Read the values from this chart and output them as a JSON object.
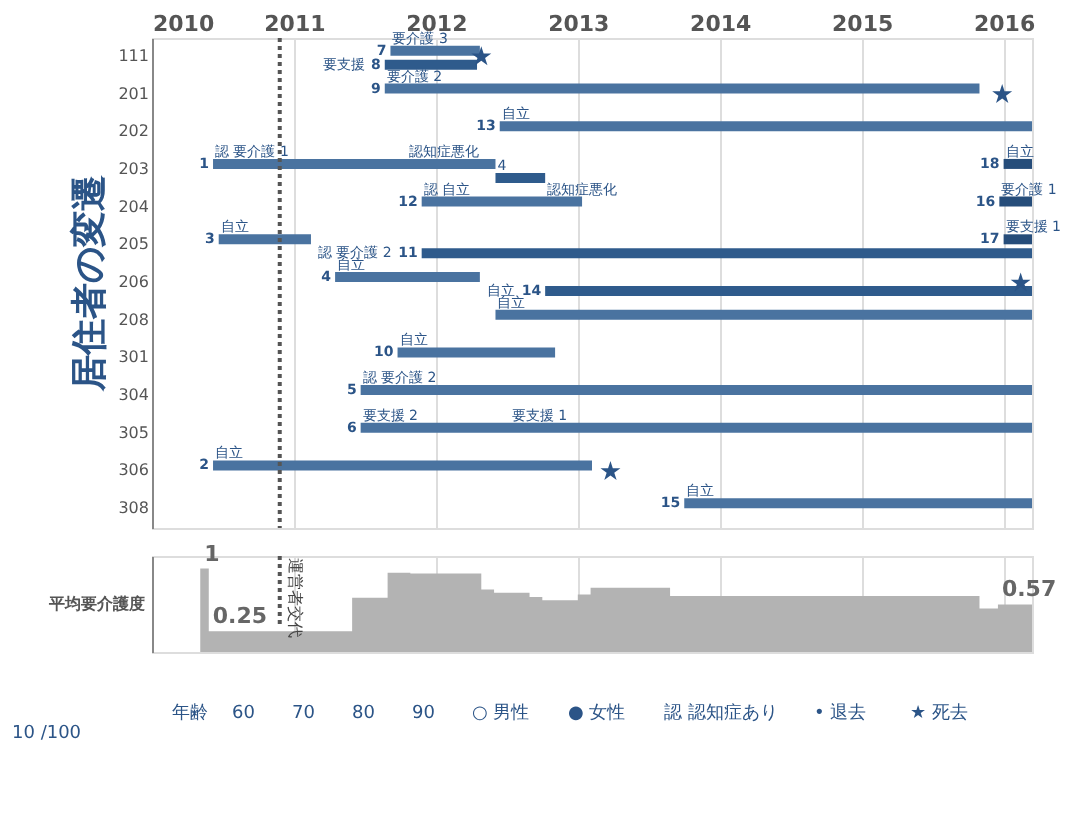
{
  "chart_data": [
    {
      "type": "bar",
      "orientation": "horizontal",
      "title": "居住者の変遷",
      "categories": [
        "111",
        "201",
        "202",
        "203",
        "204",
        "205",
        "206",
        "208",
        "301",
        "304",
        "305",
        "306",
        "308"
      ],
      "xlim": [
        2010,
        2016.2
      ],
      "xticks": [
        2010,
        2011,
        2012,
        2013,
        2014,
        2015,
        2016
      ],
      "grid": "x",
      "ref_lines": [
        {
          "axis": "x",
          "value": 2010.9,
          "label": "運営者交代",
          "line_style": "dotted",
          "color": "#555555"
        }
      ],
      "series": [
        {
          "color": "#4a73a0",
          "base": [
            2011.68,
            2011.64,
            2012.45,
            2010.43,
            2011.9,
            2010.47,
            2011.29,
            2012.42,
            2011.73,
            2011.47,
            2011.47,
            2010.43,
            2013.75
          ],
          "values": [
            0.63,
            4.19,
            3.75,
            1.99,
            1.13,
            0.65,
            1.02,
            3.78,
            1.11,
            4.73,
            4.73,
            2.67,
            2.45
          ]
        },
        {
          "color": "#2f5b8c",
          "base": [
            2011.64,
            null,
            null,
            2012.42,
            null,
            2011.9,
            2012.77,
            null,
            null,
            null,
            null,
            null,
            null
          ],
          "values": [
            0.65,
            null,
            null,
            0.35,
            null,
            4.3,
            3.43,
            null,
            null,
            null,
            null,
            null,
            null
          ]
        },
        {
          "color": "#264d7a",
          "base": [
            null,
            null,
            null,
            2016.0,
            2015.97,
            2016.0,
            null,
            null,
            null,
            null,
            null,
            null,
            null
          ],
          "values": [
            null,
            null,
            null,
            0.2,
            0.23,
            0.2,
            null,
            null,
            null,
            null,
            null,
            null,
            null
          ]
        },
        {
          "type": "scatter",
          "marker": "star",
          "color": "#2b5487",
          "values": [
            2012.32,
            2015.99,
            null,
            null,
            null,
            null,
            2016.12,
            null,
            null,
            null,
            null,
            2013.23,
            null
          ]
        }
      ],
      "annotations": [
        {
          "text": "要介護 3",
          "x": 2011.68,
          "y": "111"
        },
        {
          "text": "要支援",
          "x": 2011.64,
          "y": "111"
        },
        {
          "text": "要介護 2",
          "x": 2011.64,
          "y": "201"
        },
        {
          "text": "自立",
          "x": 2012.45,
          "y": "202"
        },
        {
          "text": "認 要介護 1",
          "x": 2010.43,
          "y": "203"
        },
        {
          "text": "認知症悪化",
          "x": 2011.8,
          "y": "203"
        },
        {
          "text": "自立",
          "x": 2016.0,
          "y": "203"
        },
        {
          "text": "認 自立",
          "x": 2011.9,
          "y": "204"
        },
        {
          "text": "認知症悪化",
          "x": 2012.77,
          "y": "204"
        },
        {
          "text": "要介護 1",
          "x": 2015.97,
          "y": "204"
        },
        {
          "text": "要支援 1",
          "x": 2016.0,
          "y": "205"
        },
        {
          "text": "自立",
          "x": 2010.47,
          "y": "205"
        },
        {
          "text": "認 要介護 2",
          "x": 2011.9,
          "y": "205"
        },
        {
          "text": "自立",
          "x": 2011.29,
          "y": "206"
        },
        {
          "text": "自立",
          "x": 2012.77,
          "y": "206"
        },
        {
          "text": "自立",
          "x": 2012.42,
          "y": "208"
        },
        {
          "text": "自立",
          "x": 2011.73,
          "y": "301"
        },
        {
          "text": "認 要介護 2",
          "x": 2011.47,
          "y": "304"
        },
        {
          "text": "要支援 2",
          "x": 2011.47,
          "y": "305"
        },
        {
          "text": "要支援 1",
          "x": 2012.52,
          "y": "305"
        },
        {
          "text": "自立",
          "x": 2010.43,
          "y": "306"
        },
        {
          "text": "自立",
          "x": 2013.75,
          "y": "308"
        },
        {
          "text": "1",
          "x": 2010.43,
          "y": "203"
        },
        {
          "text": "2",
          "x": 2010.43,
          "y": "306"
        },
        {
          "text": "3",
          "x": 2010.47,
          "y": "205"
        },
        {
          "text": "4",
          "x": 2011.29,
          "y": "206"
        },
        {
          "text": "4",
          "x": 2012.42,
          "y": "203"
        },
        {
          "text": "5",
          "x": 2011.47,
          "y": "304"
        },
        {
          "text": "6",
          "x": 2011.47,
          "y": "305"
        },
        {
          "text": "7",
          "x": 2011.68,
          "y": "111"
        },
        {
          "text": "8",
          "x": 2011.64,
          "y": "111"
        },
        {
          "text": "9",
          "x": 2011.64,
          "y": "201"
        },
        {
          "text": "10",
          "x": 2011.73,
          "y": "301"
        },
        {
          "text": "11",
          "x": 2011.9,
          "y": "205"
        },
        {
          "text": "12",
          "x": 2011.9,
          "y": "204"
        },
        {
          "text": "13",
          "x": 2012.45,
          "y": "202"
        },
        {
          "text": "14",
          "x": 2012.77,
          "y": "206"
        },
        {
          "text": "15",
          "x": 2013.75,
          "y": "308"
        },
        {
          "text": "16",
          "x": 2015.97,
          "y": "204"
        },
        {
          "text": "17",
          "x": 2016.0,
          "y": "205"
        },
        {
          "text": "18",
          "x": 2016.0,
          "y": "203"
        }
      ]
    },
    {
      "type": "area",
      "ylabel": "平均要介護度",
      "color": "#b3b3b3",
      "xlim": [
        2010,
        2016.2
      ],
      "ylim": [
        0,
        1.15
      ],
      "tick_labels": false,
      "grid": "x",
      "x": [
        2010.34,
        2010.4,
        2011.41,
        2011.66,
        2011.82,
        2012.32,
        2012.41,
        2012.66,
        2012.75,
        2013.0,
        2013.09,
        2013.65,
        2015.83,
        2015.96,
        2016.2
      ],
      "values": [
        1,
        0.25,
        0.65,
        0.95,
        0.94,
        0.75,
        0.71,
        0.66,
        0.62,
        0.69,
        0.77,
        0.67,
        0.52,
        0.57,
        0.57
      ],
      "value_labels": [
        "1",
        "0.25",
        null,
        null,
        null,
        null,
        null,
        null,
        null,
        null,
        null,
        null,
        null,
        "0.57",
        null
      ],
      "annotations": [
        "年齢",
        "60",
        "70",
        "80",
        "90",
        "○ 男性",
        "● 女性",
        "認 認知症あり",
        "• 退去",
        "★ 死去",
        "10 /100"
      ]
    }
  ]
}
